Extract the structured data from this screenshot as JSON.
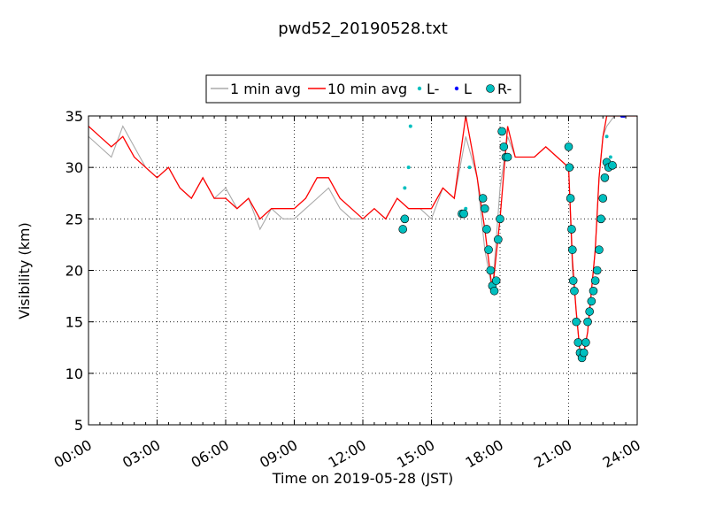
{
  "chart_data": {
    "type": "line",
    "title": "pwd52_20190528.txt",
    "xlabel": "Time on 2019-05-28 (JST)",
    "ylabel": "Visibility (km)",
    "xlim": [
      "2019-05-28T00:00",
      "2019-05-29T00:00"
    ],
    "ylim": [
      5,
      35
    ],
    "x_ticks": [
      "00:00",
      "03:00",
      "06:00",
      "09:00",
      "12:00",
      "15:00",
      "18:00",
      "21:00",
      "24:00"
    ],
    "y_ticks": [
      5,
      10,
      15,
      20,
      25,
      30,
      35
    ],
    "grid": true,
    "legend_position": "top-center",
    "series": [
      {
        "name": "1 min avg",
        "color": "#aaaaaa",
        "marker": "none",
        "x": [
          "00:00",
          "00:30",
          "01:00",
          "01:30",
          "02:00",
          "02:30",
          "03:00",
          "03:30",
          "04:00",
          "04:30",
          "05:00",
          "05:30",
          "06:00",
          "06:30",
          "07:00",
          "07:30",
          "08:00",
          "08:30",
          "09:00",
          "09:30",
          "10:00",
          "10:30",
          "11:00",
          "11:30",
          "12:00",
          "12:30",
          "13:00",
          "13:30",
          "14:00",
          "14:30",
          "15:00",
          "15:30",
          "16:00",
          "16:30",
          "17:00",
          "17:20",
          "17:40",
          "18:00",
          "18:20",
          "18:40",
          "19:00",
          "19:30",
          "20:00",
          "20:30",
          "21:00",
          "21:10",
          "21:20",
          "21:30",
          "21:40",
          "21:50",
          "22:00",
          "22:10",
          "22:20",
          "22:30",
          "22:40",
          "23:00",
          "23:30",
          "24:00"
        ],
        "values": [
          33,
          32,
          31,
          34,
          32,
          30,
          29,
          30,
          28,
          27,
          29,
          27,
          28,
          26,
          27,
          24,
          26,
          25,
          25,
          26,
          27,
          28,
          26,
          25,
          25,
          26,
          25,
          27,
          26,
          26,
          25,
          28,
          27,
          33,
          29,
          22,
          18,
          28,
          33,
          31,
          31,
          31,
          32,
          31,
          30,
          20,
          16,
          12,
          12,
          14,
          18,
          22,
          29,
          33,
          34,
          35,
          35,
          35
        ]
      },
      {
        "name": "10 min avg",
        "color": "#ff0000",
        "marker": "none",
        "x": [
          "00:00",
          "00:30",
          "01:00",
          "01:30",
          "02:00",
          "02:30",
          "03:00",
          "03:30",
          "04:00",
          "04:30",
          "05:00",
          "05:30",
          "06:00",
          "06:30",
          "07:00",
          "07:30",
          "08:00",
          "08:30",
          "09:00",
          "09:30",
          "10:00",
          "10:30",
          "11:00",
          "11:30",
          "12:00",
          "12:30",
          "13:00",
          "13:30",
          "14:00",
          "14:30",
          "15:00",
          "15:30",
          "16:00",
          "16:30",
          "17:00",
          "17:20",
          "17:40",
          "18:00",
          "18:20",
          "18:40",
          "19:00",
          "19:30",
          "20:00",
          "20:30",
          "21:00",
          "21:10",
          "21:20",
          "21:30",
          "21:40",
          "21:50",
          "22:00",
          "22:10",
          "22:20",
          "22:30",
          "22:40",
          "23:00",
          "23:30",
          "24:00"
        ],
        "values": [
          34,
          33,
          32,
          33,
          31,
          30,
          29,
          30,
          28,
          27,
          29,
          27,
          27,
          26,
          27,
          25,
          26,
          26,
          26,
          27,
          29,
          29,
          27,
          26,
          25,
          26,
          25,
          27,
          26,
          26,
          26,
          28,
          27,
          35,
          29,
          24,
          18,
          25,
          34,
          31,
          31,
          31,
          32,
          31,
          30,
          21,
          16,
          12,
          12,
          14,
          18,
          22,
          29,
          33,
          35,
          35,
          35,
          35
        ]
      },
      {
        "name": "L-",
        "color": "#00bfbf",
        "marker": "small-dot",
        "x": [
          "13:45",
          "13:50",
          "14:00",
          "14:05",
          "16:30",
          "16:40",
          "22:40",
          "22:50"
        ],
        "values": [
          25,
          28,
          30,
          34,
          26,
          30,
          33,
          31
        ]
      },
      {
        "name": "L",
        "color": "#0000ff",
        "marker": "small-dot",
        "x": [
          "23:20",
          "23:25"
        ],
        "values": [
          35,
          35
        ]
      },
      {
        "name": "R-",
        "color": "#00bfbf",
        "marker": "large-circle",
        "x": [
          "13:45",
          "13:50",
          "16:20",
          "16:25",
          "17:15",
          "17:20",
          "17:25",
          "17:30",
          "17:35",
          "17:40",
          "17:45",
          "17:50",
          "17:55",
          "18:00",
          "18:05",
          "18:10",
          "18:15",
          "18:20",
          "21:00",
          "21:02",
          "21:05",
          "21:08",
          "21:10",
          "21:12",
          "21:15",
          "21:20",
          "21:25",
          "21:30",
          "21:35",
          "21:40",
          "21:45",
          "21:50",
          "21:55",
          "22:00",
          "22:05",
          "22:10",
          "22:15",
          "22:20",
          "22:25",
          "22:30",
          "22:35",
          "22:40",
          "22:45",
          "22:55"
        ],
        "values": [
          24,
          25,
          25.5,
          25.5,
          27,
          26,
          24,
          22,
          20,
          18.5,
          18,
          19,
          23,
          25,
          33.5,
          32,
          31,
          31,
          32,
          30,
          27,
          24,
          22,
          19,
          18,
          15,
          13,
          12,
          11.5,
          12,
          13,
          15,
          16,
          17,
          18,
          19,
          20,
          22,
          25,
          27,
          29,
          30.5,
          30,
          30.2
        ]
      }
    ]
  }
}
